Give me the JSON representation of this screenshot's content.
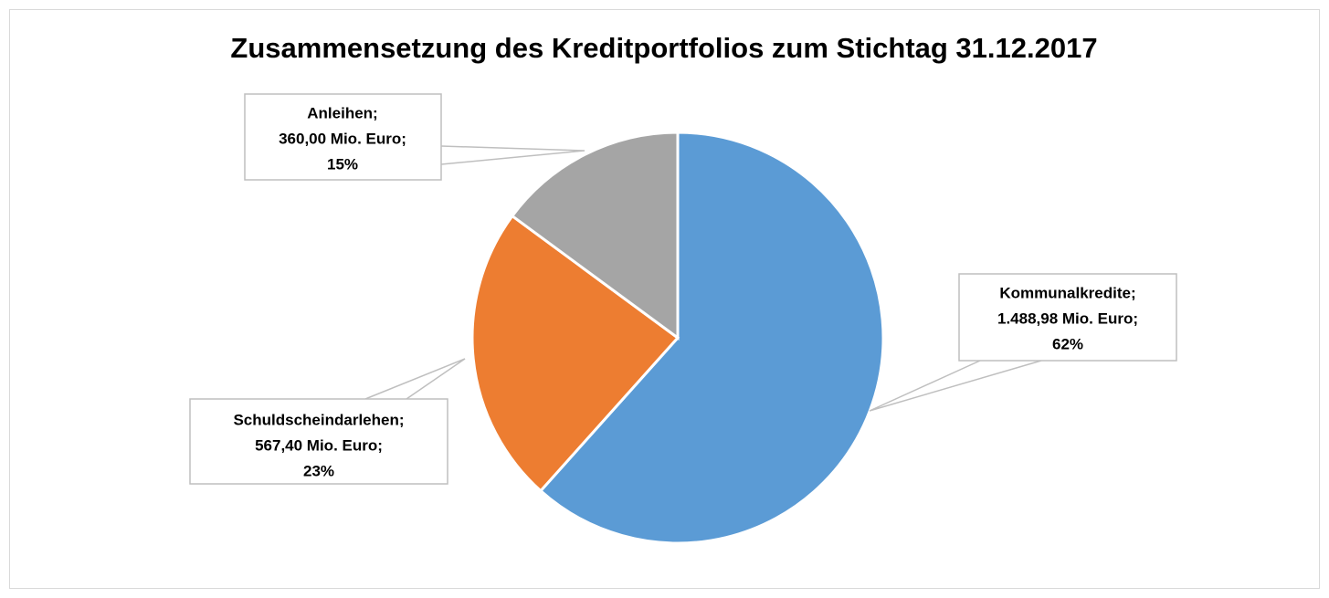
{
  "chart_data": {
    "type": "pie",
    "title": "Zusammensetzung des Kreditportfolios zum Stichtag 31.12.2017",
    "categories": [
      "Kommunalkredite;",
      "Schuldscheindarlehen;",
      "Anleihen;"
    ],
    "values": [
      1488.98,
      567.4,
      360.0
    ],
    "value_labels": [
      "1.488,98 Mio. Euro;",
      "567,40 Mio. Euro;",
      "360,00 Mio. Euro;"
    ],
    "percentages": [
      62,
      23,
      15
    ],
    "percentage_labels": [
      "62%",
      "23%",
      "15%"
    ],
    "colors": [
      "#5b9bd5",
      "#ed7d31",
      "#a5a5a5"
    ]
  }
}
